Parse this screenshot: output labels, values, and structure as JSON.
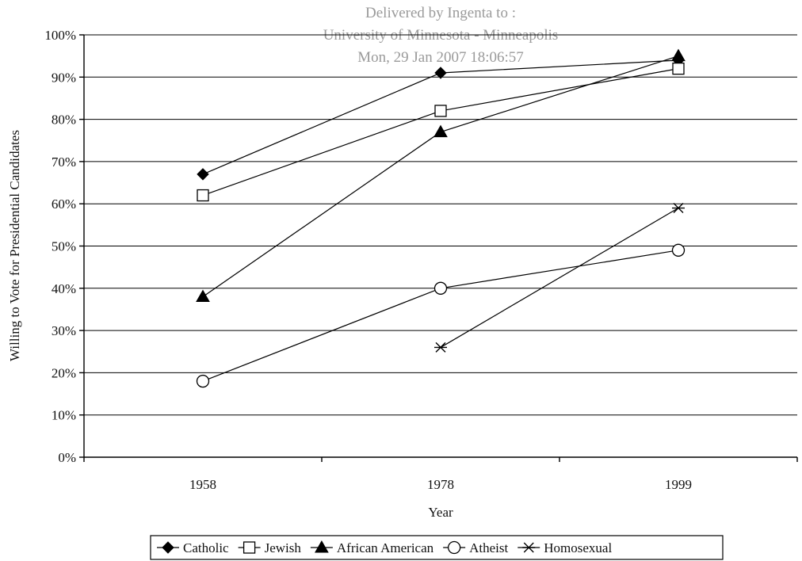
{
  "watermark": {
    "lines": [
      "Delivered by Ingenta to :",
      "University of Minnesota - Minneapolis",
      "Mon, 29 Jan 2007 18:06:57"
    ]
  },
  "chart_data": {
    "type": "line",
    "title": "",
    "xlabel": "Year",
    "ylabel": "Willing to Vote for Presidential Candidates",
    "categories": [
      "1958",
      "1978",
      "1999"
    ],
    "yticks": [
      "0%",
      "10%",
      "20%",
      "30%",
      "40%",
      "50%",
      "60%",
      "70%",
      "80%",
      "90%",
      "100%"
    ],
    "ylim": [
      0,
      100
    ],
    "grid": true,
    "legend_position": "bottom",
    "series": [
      {
        "name": "Catholic",
        "marker": "filled-diamond",
        "values": [
          67,
          91,
          94
        ]
      },
      {
        "name": "Jewish",
        "marker": "open-square",
        "values": [
          62,
          82,
          92
        ]
      },
      {
        "name": "African American",
        "marker": "filled-triangle",
        "values": [
          38,
          77,
          95
        ]
      },
      {
        "name": "Atheist",
        "marker": "open-circle",
        "values": [
          18,
          40,
          49
        ]
      },
      {
        "name": "Homosexual",
        "marker": "asterisk",
        "values": [
          null,
          26,
          59
        ]
      }
    ]
  }
}
